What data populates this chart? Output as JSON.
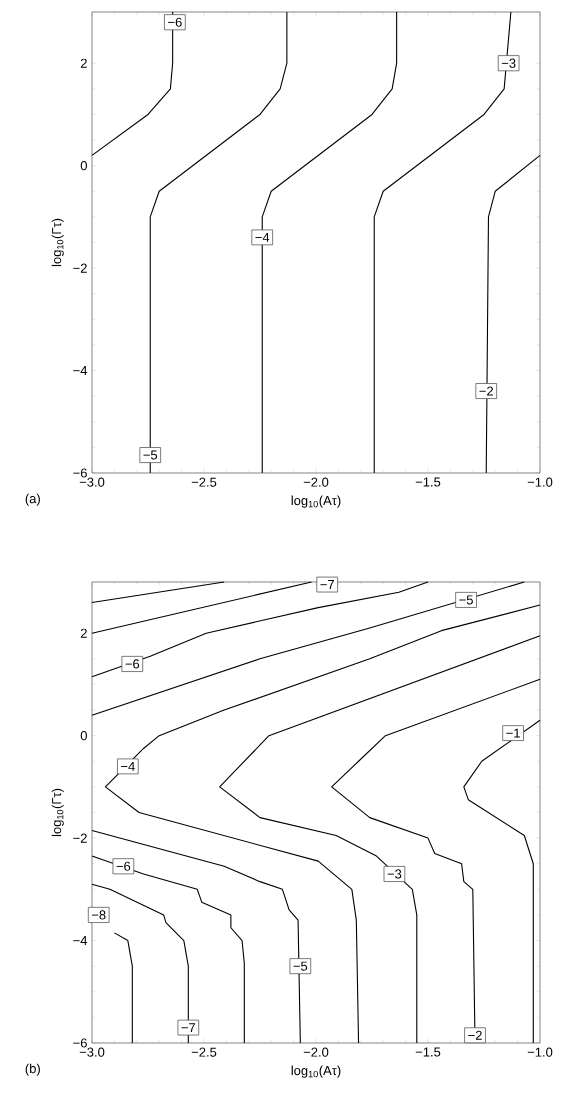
{
  "chart_data": [
    {
      "type": "line",
      "xlabel": "log$_{10}$(Aτ)",
      "ylabel": "log$_{10}$(Γτ)",
      "xlim": [
        -3,
        -1
      ],
      "ylim": [
        -6,
        3
      ],
      "xticks": [
        {
          "value": -3,
          "label": "−3.0"
        },
        {
          "value": -2.5,
          "label": "−2.5"
        },
        {
          "value": -2,
          "label": "−2.0"
        },
        {
          "value": -1.5,
          "label": "−1.5"
        },
        {
          "value": -1,
          "label": "−1.0"
        }
      ],
      "yticks": [
        {
          "value": -6,
          "label": "−6"
        },
        {
          "value": -4,
          "label": "−4"
        },
        {
          "value": -2,
          "label": "−2"
        },
        {
          "value": 0,
          "label": "0"
        },
        {
          "value": 2,
          "label": "2"
        }
      ],
      "series": [
        {
          "color": "#000000",
          "x": [
            -3,
            -2.75,
            -2.65,
            -2.64,
            -2.64
          ],
          "values": [
            0.2,
            1.0,
            1.5,
            2.0,
            3
          ]
        },
        {
          "color": "#000000",
          "x": [
            -2.74,
            -2.74,
            -2.7,
            -2.25,
            -2.16,
            -2.13,
            -2.13
          ],
          "values": [
            -6,
            -1,
            -0.5,
            1,
            1.5,
            2.0,
            3
          ]
        },
        {
          "color": "#000000",
          "x": [
            -2.24,
            -2.24,
            -2.2,
            -1.75,
            -1.66,
            -1.64,
            -1.64
          ],
          "values": [
            -6,
            -1,
            -0.5,
            1,
            1.5,
            2.0,
            3
          ]
        },
        {
          "color": "#000000",
          "x": [
            -1.74,
            -1.74,
            -1.7,
            -1.25,
            -1.16,
            -1.13
          ],
          "values": [
            -6,
            -1,
            -0.5,
            1,
            1.5,
            3
          ]
        },
        {
          "color": "#000000",
          "x": [
            -1.24,
            -1.23,
            -1.2,
            -1.0
          ],
          "values": [
            -6,
            -1,
            -0.5,
            0.2
          ]
        }
      ],
      "annotations": [
        {
          "text": "−6",
          "x": -2.63,
          "y": 2.8
        },
        {
          "text": "−5",
          "x": -2.74,
          "y": -5.65
        },
        {
          "text": "−4",
          "x": -2.24,
          "y": -1.4
        },
        {
          "text": "−3",
          "x": -1.14,
          "y": 2.0
        },
        {
          "text": "−2",
          "x": -1.24,
          "y": -4.4
        },
        "(a)"
      ]
    },
    {
      "type": "line",
      "xlabel": "log$_{10}$(Aτ)",
      "ylabel": "log$_{10}$(Γτ)",
      "xlim": [
        -3,
        -1
      ],
      "ylim": [
        -6,
        3
      ],
      "xticks": [
        {
          "value": -3,
          "label": "−3.0"
        },
        {
          "value": -2.5,
          "label": "−2.5"
        },
        {
          "value": -2,
          "label": "−2.0"
        },
        {
          "value": -1.5,
          "label": "−1.5"
        },
        {
          "value": -1,
          "label": "−1.0"
        }
      ],
      "yticks": [
        {
          "value": -6,
          "label": "−6"
        },
        {
          "value": -4,
          "label": "−4"
        },
        {
          "value": -2,
          "label": "−2"
        },
        {
          "value": 0,
          "label": "0"
        },
        {
          "value": 2,
          "label": "2"
        }
      ],
      "series": [
        {
          "color": "#000000",
          "x": [
            -3,
            -2.41
          ],
          "values": [
            2.6,
            3
          ]
        },
        {
          "color": "#000000",
          "x": [
            -3,
            -2.02
          ],
          "values": [
            2.0,
            3
          ]
        },
        {
          "color": "#000000",
          "x": [
            -3,
            -2.74,
            -2.49,
            -1.99,
            -1.63,
            -1.5
          ],
          "values": [
            1.15,
            1.55,
            2.0,
            2.5,
            2.8,
            3
          ]
        },
        {
          "color": "#000000",
          "x": [
            -3,
            -2.25,
            -1.76,
            -1.07
          ],
          "values": [
            0.4,
            1.5,
            2.1,
            3
          ]
        },
        {
          "color": "#000000",
          "x": [
            -1,
            -1.44,
            -1.76,
            -2.41,
            -2.7,
            -2.77,
            -2.94,
            -2.79,
            -1.99,
            -1.84,
            -1.82,
            -1.81
          ],
          "values": [
            2.55,
            2.05,
            1.5,
            0.5,
            0,
            -0.25,
            -1,
            -1.5,
            -2.45,
            -3,
            -3.6,
            -6
          ]
        },
        {
          "color": "#000000",
          "x": [
            -1,
            -2.21,
            -2.43,
            -2.25,
            -1.91,
            -1.73,
            -1.57,
            -1.55,
            -1.55
          ],
          "values": [
            1.95,
            0,
            -1,
            -1.6,
            -1.95,
            -2.35,
            -3,
            -3.5,
            -6
          ]
        },
        {
          "color": "#000000",
          "x": [
            -1,
            -1.69,
            -1.81,
            -1.93,
            -1.76,
            -1.5,
            -1.47,
            -1.35,
            -1.34,
            -1.3,
            -1.29
          ],
          "values": [
            1.1,
            0,
            -0.5,
            -1,
            -1.6,
            -2,
            -2.3,
            -2.5,
            -2.85,
            -3,
            -6
          ]
        },
        {
          "color": "#000000",
          "x": [
            -1,
            -1.26,
            -1.34,
            -1.32,
            -1.07,
            -1.03,
            -1.03
          ],
          "values": [
            0.3,
            -0.5,
            -1,
            -1.25,
            -1.95,
            -2.5,
            -6
          ]
        },
        {
          "color": "#000000",
          "x": [
            -3,
            -2.41,
            -2.25,
            -2.15,
            -2.12,
            -2.08,
            -2.07
          ],
          "values": [
            -1.85,
            -2.55,
            -2.85,
            -3,
            -3.4,
            -3.6,
            -6
          ]
        },
        {
          "color": "#000000",
          "x": [
            -3,
            -2.77,
            -2.53,
            -2.51,
            -2.38,
            -2.38,
            -2.33,
            -2.32,
            -2.32
          ],
          "values": [
            -2.35,
            -2.7,
            -3,
            -3.25,
            -3.5,
            -3.75,
            -4,
            -4.45,
            -6
          ]
        },
        {
          "color": "#000000",
          "x": [
            -3,
            -2.92,
            -2.68,
            -2.67,
            -2.59,
            -2.57,
            -2.57
          ],
          "values": [
            -2.9,
            -3,
            -3.5,
            -3.65,
            -4,
            -4.5,
            -6
          ]
        },
        {
          "color": "#000000",
          "x": [
            -2.9,
            -2.84,
            -2.82,
            -2.82
          ],
          "values": [
            -3.85,
            -4,
            -4.5,
            -6
          ]
        }
      ],
      "annotations": [
        {
          "text": "−7",
          "x": -1.95,
          "y": 2.95
        },
        {
          "text": "−5",
          "x": -1.33,
          "y": 2.65
        },
        {
          "text": "−6",
          "x": -2.82,
          "y": 1.4
        },
        {
          "text": "−4",
          "x": -2.84,
          "y": -0.6
        },
        {
          "text": "−1",
          "x": -1.12,
          "y": 0.05
        },
        {
          "text": "−6",
          "x": -2.86,
          "y": -2.55
        },
        {
          "text": "−3",
          "x": -1.65,
          "y": -2.7
        },
        {
          "text": "−8",
          "x": -2.97,
          "y": -3.5
        },
        {
          "text": "−5",
          "x": -2.07,
          "y": -4.5
        },
        {
          "text": "−7",
          "x": -2.57,
          "y": -5.7
        },
        {
          "text": "−2",
          "x": -1.29,
          "y": -5.85
        },
        "(b)"
      ]
    }
  ]
}
